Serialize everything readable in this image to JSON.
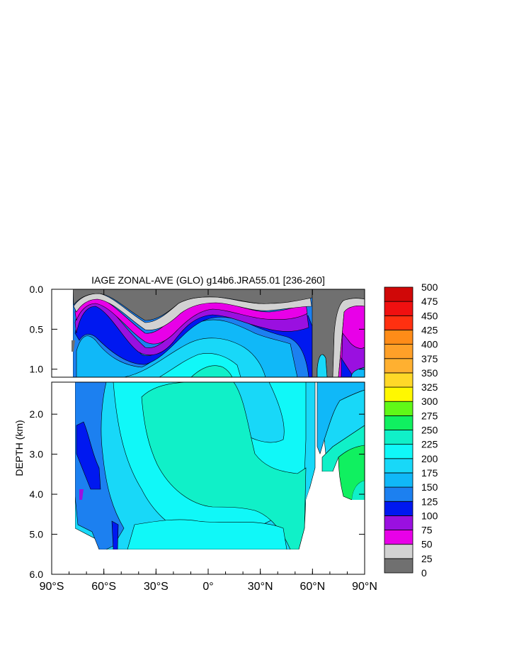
{
  "chart_data": {
    "type": "contour",
    "title": "IAGE ZONAL-AVE (GLO) g14b6.JRA55.01 [236-260]",
    "ylabel": "DEPTH (km)",
    "xlabel": "",
    "xlim": [
      -90,
      90
    ],
    "ylim": [
      6.0,
      0.0
    ],
    "y_axis_break": {
      "upper_panel": [
        0.0,
        1.1
      ],
      "lower_panel": [
        1.2,
        6.0
      ]
    },
    "x_ticks": [
      {
        "value": -90,
        "label": "90°S"
      },
      {
        "value": -60,
        "label": "60°S"
      },
      {
        "value": -30,
        "label": "30°S"
      },
      {
        "value": 0,
        "label": "0°"
      },
      {
        "value": 30,
        "label": "30°N"
      },
      {
        "value": 60,
        "label": "60°N"
      },
      {
        "value": 90,
        "label": "90°N"
      }
    ],
    "y_ticks_upper": [
      {
        "value": 0.0,
        "label": "0.0"
      },
      {
        "value": 0.5,
        "label": "0.5"
      },
      {
        "value": 1.0,
        "label": "1.0"
      }
    ],
    "y_ticks_lower": [
      {
        "value": 2.0,
        "label": "2.0"
      },
      {
        "value": 3.0,
        "label": "3.0"
      },
      {
        "value": 4.0,
        "label": "4.0"
      },
      {
        "value": 5.0,
        "label": "5.0"
      },
      {
        "value": 6.0,
        "label": "6.0"
      }
    ],
    "colorbar": {
      "levels": [
        "0",
        "25",
        "50",
        "75",
        "100",
        "125",
        "150",
        "175",
        "200",
        "225",
        "250",
        "275",
        "300",
        "325",
        "350",
        "375",
        "400",
        "425",
        "450",
        "475",
        "500"
      ],
      "colors": [
        "#707070",
        "#d2d2d2",
        "#e800e8",
        "#9a10e0",
        "#0018f0",
        "#1c80f0",
        "#10b8f8",
        "#18d8f8",
        "#10f8f8",
        "#10f0c8",
        "#10f060",
        "#60f818",
        "#fff800",
        "#ffd828",
        "#ffb030",
        "#ffa028",
        "#ff8c18",
        "#ff3010",
        "#f01010",
        "#d00808"
      ]
    }
  }
}
